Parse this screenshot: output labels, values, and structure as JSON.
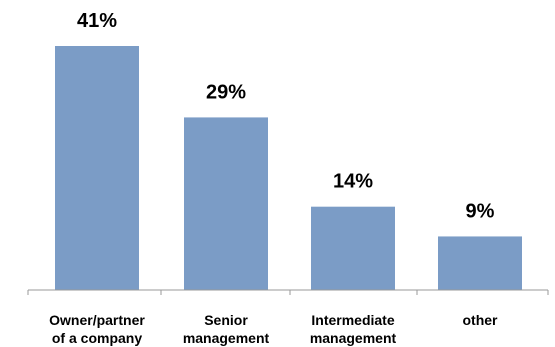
{
  "chart_data": {
    "type": "bar",
    "categories": [
      [
        "Owner/partner",
        "of a company"
      ],
      [
        "Senior",
        "management"
      ],
      [
        "Intermediate",
        "management"
      ],
      [
        "other"
      ]
    ],
    "values": [
      41,
      29,
      14,
      9
    ],
    "value_labels": [
      "41%",
      "29%",
      "14%",
      "9%"
    ],
    "title": "",
    "xlabel": "",
    "ylabel": "",
    "ylim": [
      0,
      41
    ],
    "grid": false,
    "legend": "none",
    "bar_color": "#7b9cc6",
    "axis_color": "#9a9a9a"
  }
}
